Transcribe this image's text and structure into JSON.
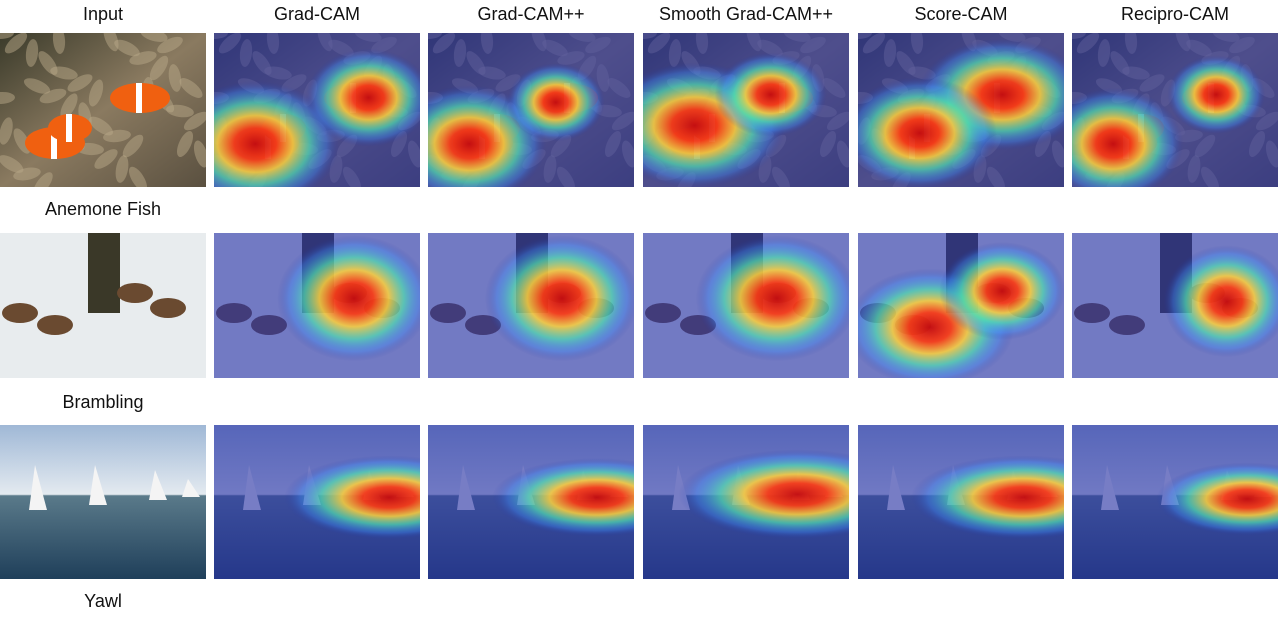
{
  "figure": {
    "column_headers": [
      "Input",
      "Grad-CAM",
      "Grad-CAM++",
      "Smooth Grad-CAM++",
      "Score-CAM",
      "Recipro-CAM"
    ],
    "row_labels": [
      "Anemone Fish",
      "Brambling",
      "Yawl"
    ]
  }
}
